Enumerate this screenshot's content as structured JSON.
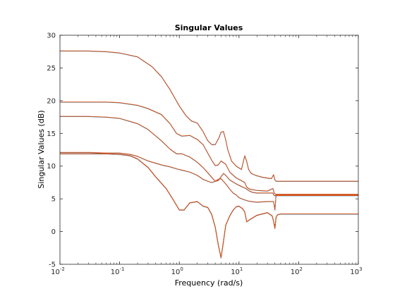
{
  "chart_data": {
    "type": "line",
    "title": "Singular Values",
    "xlabel": "Frequency (rad/s)",
    "ylabel": "Singular Values (dB)",
    "xscale": "log",
    "xlim": [
      0.01,
      1000
    ],
    "ylim": [
      -5,
      30
    ],
    "grid": false,
    "legend": "none",
    "xticks": [
      {
        "value": 0.01,
        "base": "10",
        "exp": "-2"
      },
      {
        "value": 0.1,
        "base": "10",
        "exp": "-1"
      },
      {
        "value": 1,
        "base": "10",
        "exp": "0"
      },
      {
        "value": 10,
        "base": "10",
        "exp": "1"
      },
      {
        "value": 100,
        "base": "10",
        "exp": "2"
      },
      {
        "value": 1000,
        "base": "10",
        "exp": "3"
      }
    ],
    "yticks": [
      -5,
      0,
      5,
      10,
      15,
      20,
      25,
      30
    ],
    "colors": {
      "system_a": "#0072bd",
      "system_b": "#d95319",
      "axes": "#262626"
    },
    "series": [
      {
        "x": [
          0.01,
          0.03,
          0.06,
          0.1,
          0.2,
          0.35,
          0.5,
          0.7,
          1.0,
          1.3,
          1.6,
          2.0,
          2.5,
          3.0,
          3.5,
          4.0,
          4.6,
          5.0,
          5.5,
          6.0,
          6.5,
          7.5,
          9,
          11,
          12.5,
          13.5,
          14.5,
          16,
          19,
          25,
          35,
          38,
          40,
          42,
          50,
          70,
          100,
          200,
          1000
        ],
        "y": [
          27.6,
          27.6,
          27.5,
          27.3,
          26.7,
          25.2,
          23.7,
          21.7,
          19.2,
          17.7,
          16.9,
          16.6,
          15.3,
          13.9,
          13.3,
          13.3,
          14.3,
          15.2,
          15.3,
          14.0,
          12.5,
          10.8,
          10.0,
          9.5,
          11.6,
          10.7,
          9.5,
          8.9,
          8.6,
          8.3,
          8.1,
          8.7,
          7.9,
          7.7,
          7.7,
          7.7,
          7.7,
          7.7,
          7.7
        ]
      },
      {
        "x": [
          0.01,
          0.03,
          0.06,
          0.1,
          0.2,
          0.3,
          0.5,
          0.7,
          0.9,
          1.1,
          1.5,
          2.0,
          2.5,
          3.0,
          3.5,
          4.0,
          4.5,
          5.0,
          6.0,
          7.0,
          9,
          11,
          12.5,
          13.5,
          15,
          20,
          30,
          37,
          39,
          42,
          50,
          100,
          1000
        ],
        "y": [
          19.8,
          19.8,
          19.8,
          19.7,
          19.3,
          18.8,
          17.9,
          16.5,
          15.0,
          14.6,
          14.7,
          14.1,
          13.3,
          12.0,
          10.9,
          10.1,
          10.2,
          10.8,
          10.3,
          9.1,
          8.2,
          7.8,
          7.5,
          6.8,
          6.5,
          6.3,
          6.2,
          6.6,
          5.9,
          5.6,
          5.6,
          5.6,
          5.6
        ]
      },
      {
        "x": [
          0.01,
          0.03,
          0.06,
          0.1,
          0.2,
          0.3,
          0.5,
          0.7,
          0.9,
          1.1,
          1.5,
          2.0,
          2.5,
          3.0,
          3.5,
          4.0,
          4.5,
          5.0,
          5.5,
          6.0,
          7.0,
          9,
          11,
          13,
          15,
          17,
          20,
          30,
          37,
          39,
          42,
          50,
          100,
          1000
        ],
        "y": [
          17.6,
          17.6,
          17.5,
          17.3,
          16.5,
          15.6,
          13.9,
          12.6,
          11.9,
          11.9,
          11.4,
          10.6,
          9.8,
          9.0,
          8.3,
          7.7,
          7.8,
          8.4,
          8.9,
          8.6,
          7.9,
          7.3,
          6.9,
          6.6,
          6.2,
          6.0,
          5.9,
          5.9,
          5.9,
          5.5,
          5.5,
          5.5,
          5.5,
          5.5
        ]
      },
      {
        "x": [
          0.01,
          0.03,
          0.06,
          0.1,
          0.15,
          0.2,
          0.3,
          0.4,
          0.6,
          0.8,
          1.0,
          1.2,
          1.5,
          2.0,
          2.5,
          3.0,
          3.5,
          4.0,
          4.5,
          5.0,
          5.5,
          6.0,
          7.0,
          8.0,
          9.0,
          10,
          11.5,
          12.5,
          13.5,
          15,
          20,
          30,
          36,
          38,
          40,
          42,
          45,
          50,
          100,
          1000
        ],
        "y": [
          11.9,
          11.9,
          11.9,
          11.8,
          11.6,
          11.1,
          9.8,
          8.4,
          6.6,
          4.8,
          3.3,
          3.3,
          4.4,
          4.6,
          3.9,
          3.7,
          2.6,
          0.7,
          -2.0,
          -4.0,
          -1.5,
          1.0,
          2.4,
          3.3,
          3.8,
          3.9,
          3.5,
          3.0,
          1.5,
          1.8,
          2.5,
          2.9,
          2.4,
          1.6,
          0.5,
          2.3,
          2.6,
          2.7,
          2.7,
          2.7
        ]
      },
      {
        "x": [
          0.01,
          0.03,
          0.06,
          0.1,
          0.15,
          0.2,
          0.3,
          0.4,
          0.6,
          0.8,
          1.0,
          1.2,
          1.5,
          2.0,
          2.5,
          3.0,
          3.5,
          4.0,
          4.5,
          5.0,
          5.5,
          6.0,
          7.0,
          8.0,
          9.0,
          10,
          11.5,
          12.5,
          13.5,
          15,
          20,
          30,
          36,
          38,
          40,
          42,
          45,
          50,
          100,
          1000
        ],
        "y": [
          11.9,
          11.9,
          11.9,
          11.8,
          11.6,
          11.1,
          9.8,
          8.4,
          6.6,
          4.8,
          3.3,
          3.3,
          4.4,
          4.6,
          3.9,
          3.7,
          2.6,
          0.7,
          -2.0,
          -4.0,
          -1.5,
          1.0,
          2.4,
          3.3,
          3.8,
          3.9,
          3.5,
          3.0,
          1.5,
          1.8,
          2.5,
          2.9,
          2.4,
          1.6,
          0.5,
          2.3,
          2.6,
          2.7,
          2.7,
          2.7
        ]
      },
      {
        "x": [
          0.01,
          0.03,
          0.06,
          0.1,
          0.15,
          0.2,
          0.3,
          0.5,
          0.7,
          0.9,
          1.1,
          1.5,
          2.0,
          2.5,
          3.0,
          3.5,
          4.0,
          4.5,
          5.0,
          6.0,
          7.0,
          8.0,
          9.0,
          10,
          12,
          14,
          16,
          20,
          30,
          38,
          40,
          42,
          50,
          100,
          1000
        ],
        "y": [
          12.1,
          12.1,
          12.0,
          12.0,
          11.8,
          11.5,
          10.8,
          10.2,
          9.9,
          9.6,
          9.4,
          9.1,
          8.6,
          8.0,
          7.7,
          7.5,
          7.7,
          8.0,
          8.1,
          7.3,
          6.5,
          5.9,
          5.6,
          5.2,
          4.9,
          4.7,
          4.6,
          4.5,
          4.6,
          4.6,
          3.3,
          5.7,
          5.7,
          5.7,
          5.7
        ]
      }
    ]
  }
}
